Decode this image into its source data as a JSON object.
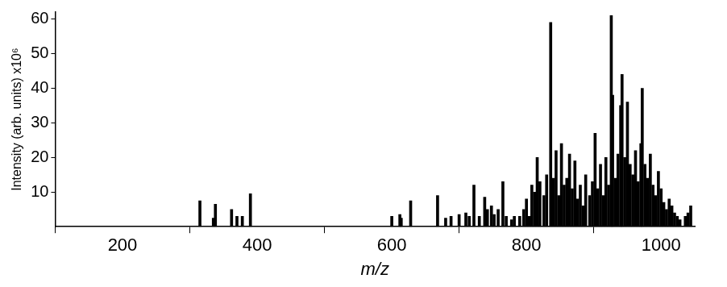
{
  "chart_data": {
    "type": "bar",
    "x_label": "m/z",
    "y_label": "Intensity (arb. units) x10⁶",
    "x": [
      315,
      335,
      338,
      362,
      370,
      378,
      390,
      600,
      612,
      614,
      628,
      668,
      680,
      688,
      700,
      710,
      715,
      722,
      730,
      738,
      742,
      748,
      752,
      758,
      765,
      770,
      778,
      782,
      790,
      796,
      800,
      804,
      808,
      812,
      816,
      820,
      826,
      830,
      836,
      840,
      844,
      848,
      852,
      856,
      860,
      864,
      868,
      872,
      876,
      880,
      884,
      888,
      894,
      898,
      902,
      906,
      910,
      914,
      918,
      922,
      926,
      928,
      932,
      936,
      940,
      942,
      946,
      950,
      954,
      958,
      962,
      966,
      970,
      972,
      976,
      980,
      984,
      988,
      992,
      996,
      1000,
      1004,
      1008,
      1012,
      1016,
      1020,
      1024,
      1028,
      1036,
      1040,
      1044
    ],
    "values": [
      7.5,
      2.5,
      6.5,
      5,
      3,
      3,
      9.5,
      3,
      3.5,
      2.5,
      7.5,
      9,
      2.5,
      3,
      3.5,
      4,
      3,
      12,
      3,
      8.5,
      5,
      6,
      3.5,
      5,
      13,
      3,
      2,
      3,
      3,
      5,
      8,
      3,
      12,
      10,
      20,
      13,
      9,
      15,
      59,
      14,
      22,
      9,
      24,
      12,
      14,
      21,
      11,
      19,
      8,
      12,
      6,
      15,
      9,
      13,
      27,
      11,
      18,
      9,
      20,
      12,
      61,
      38,
      14,
      21,
      35,
      44,
      20,
      36,
      18,
      15,
      22,
      13,
      24,
      40,
      18,
      14,
      21,
      12,
      9,
      16,
      11,
      7,
      5,
      8,
      6,
      4,
      3,
      2,
      3,
      4,
      6
    ],
    "color": "#000000",
    "xlim": [
      100,
      1050
    ],
    "xticks": [
      200,
      400,
      600,
      800,
      1000
    ],
    "ylim": [
      0,
      62
    ],
    "yticks": [
      10,
      20,
      30,
      40,
      50,
      60
    ],
    "grid": false
  }
}
